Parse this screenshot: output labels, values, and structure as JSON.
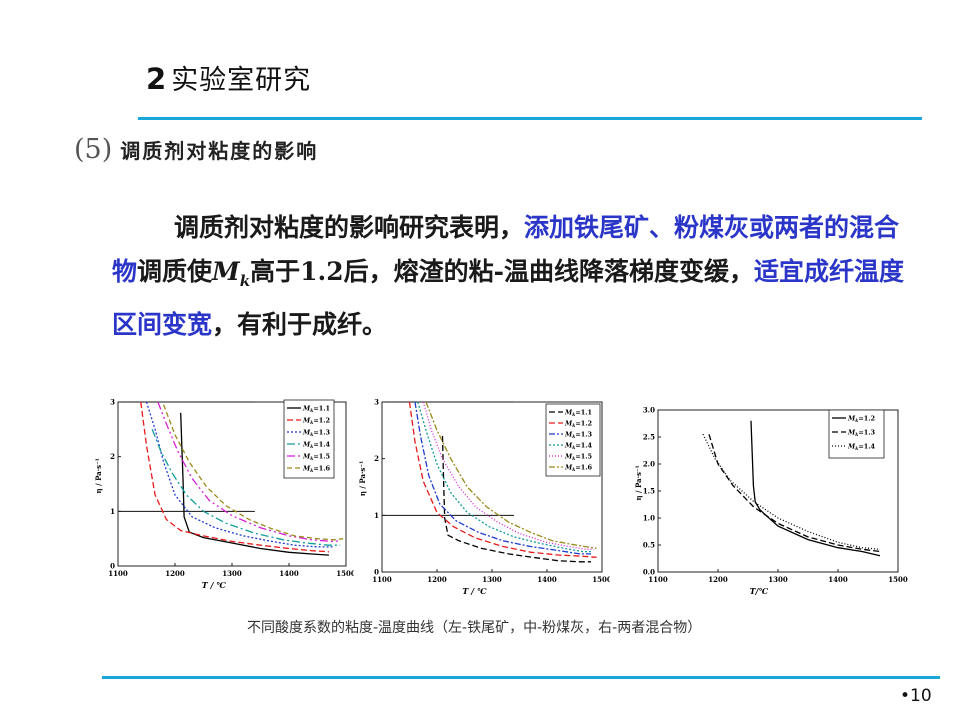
{
  "slide": {
    "section_number": "2",
    "title": "实验室研究",
    "subheading_index": "(5)",
    "subheading": "调质剂对粘度的影响",
    "paragraph": {
      "p1": "调质剂对粘度的影响研究表明，",
      "p2": "添加铁尾矿、粉煤灰或两者的混合物",
      "p3": "调质使",
      "mk_main": "M",
      "mk_sub": "k",
      "p4": "高于1.2后，熔渣的粘-温曲线降落梯度变缓，",
      "p5": "适宜成纤温度区间变宽",
      "p6": "，有利于成纤。"
    },
    "caption": "不同酸度系数的粘度-温度曲线（左-铁尾矿，中-粉煤灰，右-两者混合物）",
    "page_number": "•10",
    "accent_color": "#19a6d8",
    "highlight_color": "#2b36c9"
  },
  "chart_data": [
    {
      "type": "line",
      "title": "",
      "xlabel": "T / ℃",
      "ylabel": "η / Pa·s⁻¹",
      "xlim": [
        1100,
        1500
      ],
      "ylim": [
        0,
        3
      ],
      "xticks": [
        1100,
        1200,
        1300,
        1400,
        1500
      ],
      "yticks": [
        0,
        1,
        2,
        3
      ],
      "reference_lines": [
        1,
        3
      ],
      "legend_position": "top-right",
      "legend_prefix": "M",
      "legend_sub": "k",
      "series": [
        {
          "name": "=1.1",
          "color": "#000000",
          "dash": "",
          "x": [
            1210,
            1212,
            1214,
            1216,
            1225,
            1250,
            1300,
            1350,
            1400,
            1440,
            1470
          ],
          "y": [
            2.8,
            2.2,
            1.6,
            0.9,
            0.62,
            0.52,
            0.42,
            0.32,
            0.25,
            0.22,
            0.2
          ]
        },
        {
          "name": "=1.2",
          "color": "#e8191a",
          "dash": "6,3",
          "x": [
            1140,
            1150,
            1165,
            1185,
            1210,
            1250,
            1300,
            1350,
            1400,
            1440,
            1470
          ],
          "y": [
            3.0,
            2.2,
            1.3,
            0.85,
            0.65,
            0.55,
            0.45,
            0.38,
            0.32,
            0.28,
            0.26
          ]
        },
        {
          "name": "=1.3",
          "color": "#1f3bd1",
          "dash": "2,2",
          "x": [
            1150,
            1165,
            1180,
            1200,
            1230,
            1270,
            1320,
            1370,
            1410,
            1450,
            1480
          ],
          "y": [
            3.0,
            2.5,
            1.9,
            1.3,
            0.9,
            0.7,
            0.55,
            0.45,
            0.38,
            0.35,
            0.35
          ]
        },
        {
          "name": "=1.4",
          "color": "#109c9a",
          "dash": "8,3,2,3",
          "x": [
            1160,
            1175,
            1195,
            1220,
            1250,
            1290,
            1340,
            1390,
            1430,
            1470,
            1490
          ],
          "y": [
            2.5,
            2.1,
            1.7,
            1.3,
            1.0,
            0.78,
            0.6,
            0.48,
            0.42,
            0.38,
            0.38
          ]
        },
        {
          "name": "=1.5",
          "color": "#d81fd8",
          "dash": "8,3,2,3,2,3",
          "x": [
            1170,
            1185,
            1205,
            1230,
            1260,
            1300,
            1350,
            1400,
            1440,
            1475,
            1490
          ],
          "y": [
            3.0,
            2.6,
            2.1,
            1.6,
            1.2,
            0.92,
            0.7,
            0.55,
            0.48,
            0.45,
            0.46
          ]
        },
        {
          "name": "=1.6",
          "color": "#9a8a1a",
          "dash": "5,3",
          "x": [
            1180,
            1200,
            1225,
            1255,
            1290,
            1330,
            1370,
            1410,
            1450,
            1480,
            1495
          ],
          "y": [
            2.95,
            2.4,
            1.9,
            1.45,
            1.1,
            0.85,
            0.68,
            0.55,
            0.5,
            0.48,
            0.5
          ]
        }
      ]
    },
    {
      "type": "line",
      "title": "",
      "xlabel": "T / ℃",
      "ylabel": "η / Pa·s⁻¹",
      "xlim": [
        1100,
        1500
      ],
      "ylim": [
        0,
        3
      ],
      "xticks": [
        1100,
        1200,
        1300,
        1400,
        1500
      ],
      "yticks": [
        0,
        1,
        2,
        3
      ],
      "reference_lines": [
        1,
        3
      ],
      "legend_position": "top-right",
      "legend_prefix": "M",
      "legend_sub": "k",
      "series": [
        {
          "name": "=1.1",
          "color": "#000000",
          "dash": "6,3",
          "x": [
            1210,
            1212,
            1214,
            1220,
            1240,
            1280,
            1330,
            1380,
            1420,
            1460,
            1480
          ],
          "y": [
            2.4,
            1.6,
            0.95,
            0.65,
            0.55,
            0.42,
            0.32,
            0.25,
            0.2,
            0.18,
            0.18
          ]
        },
        {
          "name": "=1.2",
          "color": "#e8191a",
          "dash": "6,3",
          "x": [
            1150,
            1160,
            1175,
            1200,
            1230,
            1270,
            1320,
            1370,
            1420,
            1460,
            1490
          ],
          "y": [
            3.0,
            2.3,
            1.6,
            1.05,
            0.8,
            0.6,
            0.45,
            0.35,
            0.3,
            0.28,
            0.26
          ]
        },
        {
          "name": "=1.3",
          "color": "#1f3bd1",
          "dash": "6,2,2,2",
          "x": [
            1160,
            1170,
            1185,
            1205,
            1235,
            1275,
            1320,
            1370,
            1420,
            1460,
            1480
          ],
          "y": [
            3.0,
            2.4,
            1.7,
            1.2,
            0.9,
            0.7,
            0.55,
            0.45,
            0.38,
            0.32,
            0.32
          ]
        },
        {
          "name": "=1.4",
          "color": "#109c9a",
          "dash": "2,2",
          "x": [
            1165,
            1180,
            1200,
            1225,
            1255,
            1295,
            1340,
            1390,
            1430,
            1465,
            1480
          ],
          "y": [
            3.0,
            2.5,
            1.9,
            1.4,
            1.05,
            0.8,
            0.62,
            0.5,
            0.42,
            0.36,
            0.36
          ]
        },
        {
          "name": "=1.5",
          "color": "#d81fd8",
          "dash": "1,2",
          "x": [
            1175,
            1190,
            1210,
            1240,
            1270,
            1310,
            1350,
            1400,
            1440,
            1470,
            1485
          ],
          "y": [
            3.0,
            2.5,
            2.0,
            1.5,
            1.15,
            0.88,
            0.68,
            0.52,
            0.45,
            0.4,
            0.4
          ]
        },
        {
          "name": "=1.6",
          "color": "#9a8a1a",
          "dash": "6,2,2,2",
          "x": [
            1180,
            1200,
            1225,
            1255,
            1290,
            1330,
            1370,
            1410,
            1450,
            1475,
            1490
          ],
          "y": [
            3.0,
            2.5,
            2.0,
            1.5,
            1.15,
            0.88,
            0.7,
            0.55,
            0.48,
            0.44,
            0.42
          ]
        }
      ]
    },
    {
      "type": "line",
      "title": "",
      "xlabel": "T/℃",
      "ylabel": "η / Pa·s⁻¹",
      "xlim": [
        1100,
        1500
      ],
      "ylim": [
        0,
        3.0
      ],
      "xticks": [
        1100,
        1200,
        1300,
        1400,
        1500
      ],
      "yticks": [
        0.0,
        0.5,
        1.0,
        1.5,
        2.0,
        2.5,
        3.0
      ],
      "reference_lines": [],
      "legend_position": "top-right",
      "legend_prefix": "M",
      "legend_sub": "k",
      "series": [
        {
          "name": "=1.2",
          "color": "#000000",
          "dash": "",
          "x": [
            1255,
            1257,
            1259,
            1262,
            1270,
            1300,
            1350,
            1400,
            1440,
            1470
          ],
          "y": [
            2.8,
            2.2,
            1.6,
            1.3,
            1.15,
            0.85,
            0.6,
            0.45,
            0.38,
            0.3
          ]
        },
        {
          "name": "=1.3",
          "color": "#000000",
          "dash": "6,3",
          "x": [
            1185,
            1200,
            1225,
            1260,
            1300,
            1350,
            1400,
            1440,
            1470
          ],
          "y": [
            2.55,
            2.0,
            1.6,
            1.2,
            0.9,
            0.65,
            0.5,
            0.42,
            0.38
          ]
        },
        {
          "name": "=1.4",
          "color": "#000000",
          "dash": "1,2",
          "x": [
            1175,
            1195,
            1220,
            1260,
            1300,
            1350,
            1400,
            1440,
            1470
          ],
          "y": [
            2.55,
            2.1,
            1.7,
            1.3,
            1.0,
            0.75,
            0.55,
            0.45,
            0.42
          ]
        }
      ]
    }
  ]
}
